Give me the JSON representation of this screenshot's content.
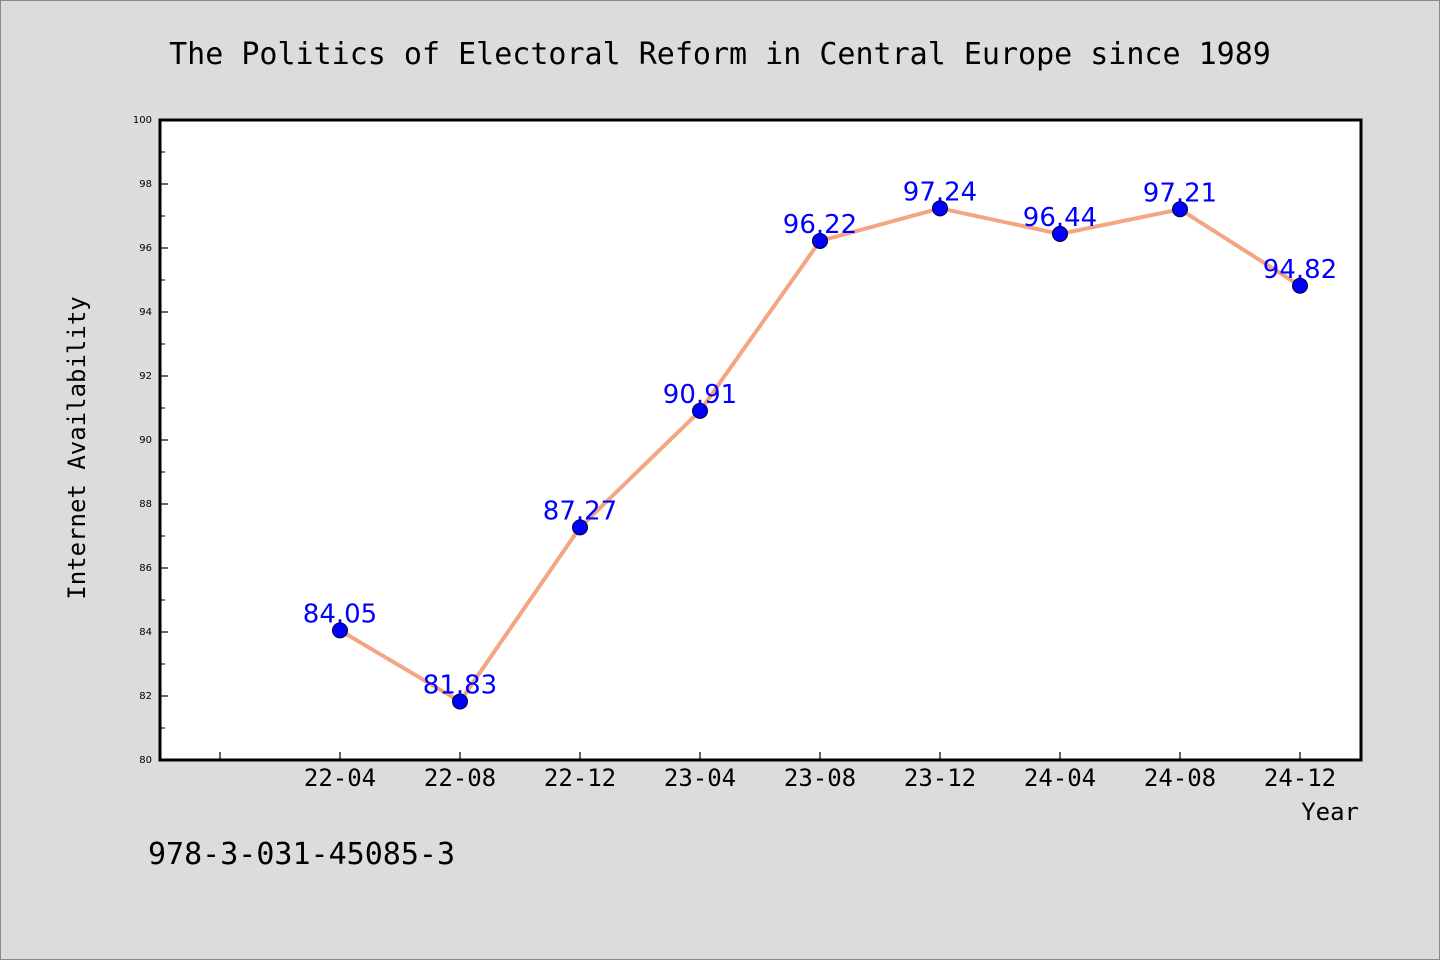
{
  "chart_data": {
    "type": "line",
    "title": "The Politics of Electoral Reform in Central Europe since 1989",
    "xlabel": "Year",
    "ylabel": "Internet Availability",
    "categories": [
      "22-04",
      "22-08",
      "22-12",
      "23-04",
      "23-08",
      "23-12",
      "24-04",
      "24-08",
      "24-12"
    ],
    "series": [
      {
        "values": [
          84.05,
          81.83,
          87.27,
          90.91,
          96.22,
          97.24,
          96.44,
          97.21,
          94.82
        ],
        "data_labels": [
          "84.05",
          "81.83",
          "87.27",
          "90.91",
          "96.22",
          "97.24",
          "96.44",
          "97.21",
          "94.82"
        ]
      }
    ],
    "ylim": [
      80,
      100
    ],
    "yticks": [
      80,
      82,
      84,
      86,
      88,
      90,
      92,
      94,
      96,
      98,
      100
    ],
    "ytick_labels": [
      "80",
      "82",
      "84",
      "86",
      "88",
      "90",
      "92",
      "94",
      "96",
      "98",
      "100"
    ],
    "grid": false,
    "legend": "none",
    "line_color": "#f4a582",
    "marker_color": "#0000ff",
    "label_color": "#0000ff"
  },
  "footer": {
    "isbn": "978-3-031-45085-3"
  }
}
